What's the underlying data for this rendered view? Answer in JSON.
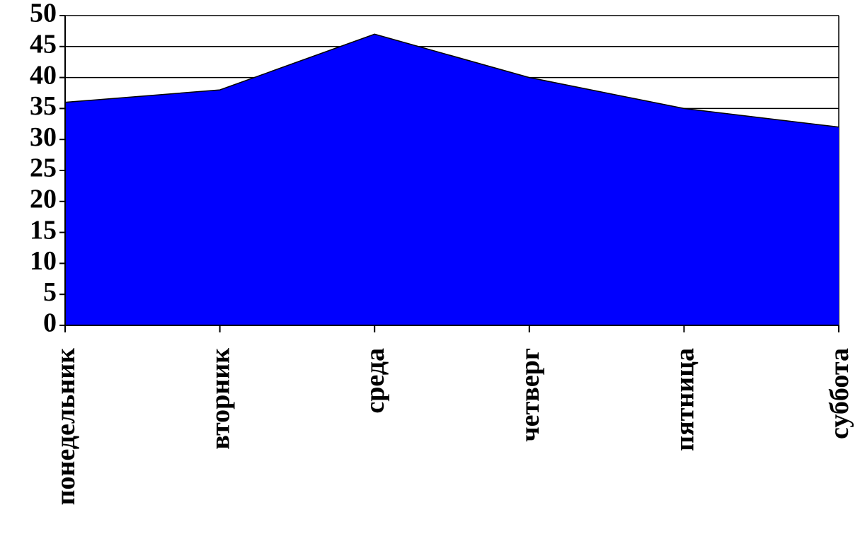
{
  "chart_data": {
    "type": "area",
    "title": "",
    "xlabel": "",
    "ylabel": "",
    "categories": [
      "понедельник",
      "вторник",
      "среда",
      "четверг",
      "пятница",
      "суббота"
    ],
    "values": [
      36,
      38,
      47,
      40,
      35,
      32
    ],
    "ylim": [
      0,
      50
    ],
    "yticks": [
      "0",
      "5",
      "10",
      "15",
      "20",
      "25",
      "30",
      "35",
      "40",
      "45",
      "50"
    ],
    "grid": true,
    "legend": "none",
    "colors": {
      "fill": "#0000ff",
      "outline": "#000000",
      "grid": "#000000"
    }
  }
}
